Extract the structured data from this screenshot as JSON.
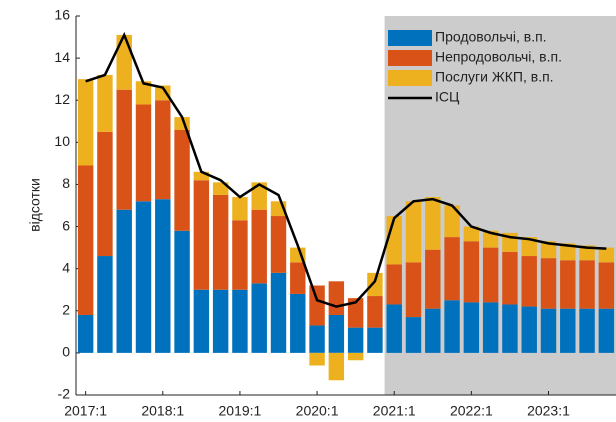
{
  "chart_data": {
    "type": "bar",
    "stacked": true,
    "y_label": "відсотки",
    "categories": [
      "2017:1",
      null,
      null,
      null,
      "2018:1",
      null,
      null,
      null,
      "2019:1",
      null,
      null,
      null,
      "2020:1",
      null,
      null,
      null,
      "2021:1",
      null,
      null,
      null,
      "2022:1",
      null,
      null,
      null,
      "2023:1",
      null,
      null,
      null
    ],
    "series": [
      {
        "name": "Продовольчі, в.п.",
        "color": "#0072bd",
        "values": [
          1.8,
          4.6,
          6.8,
          7.2,
          7.3,
          5.8,
          3.0,
          3.0,
          3.0,
          3.3,
          3.8,
          2.8,
          1.3,
          1.8,
          1.2,
          1.2,
          2.3,
          1.7,
          2.1,
          2.5,
          2.4,
          2.4,
          2.3,
          2.2,
          2.1,
          2.1,
          2.1,
          2.1
        ]
      },
      {
        "name": "Непродовольчі, в.п.",
        "color": "#d95319",
        "values": [
          7.1,
          5.9,
          5.7,
          4.6,
          4.7,
          4.8,
          5.2,
          4.5,
          3.3,
          3.5,
          2.7,
          1.5,
          1.9,
          1.6,
          1.4,
          1.5,
          1.9,
          2.6,
          2.8,
          3.0,
          2.9,
          2.6,
          2.5,
          2.4,
          2.4,
          2.3,
          2.3,
          2.2
        ]
      },
      {
        "name": "Послуги ЖКП, в.п.",
        "color": "#edb120",
        "values": [
          4.1,
          2.7,
          2.6,
          1.1,
          0.7,
          0.6,
          0.4,
          0.6,
          1.1,
          1.3,
          0.7,
          0.7,
          -0.6,
          -1.3,
          -0.35,
          1.1,
          2.3,
          2.9,
          2.5,
          1.5,
          0.7,
          0.8,
          0.9,
          0.9,
          0.8,
          0.8,
          0.7,
          0.7
        ]
      },
      {
        "name": "ІСЦ",
        "type": "line",
        "color": "#000000",
        "values": [
          12.9,
          13.2,
          15.1,
          12.8,
          12.6,
          11.2,
          8.6,
          8.2,
          7.4,
          8.0,
          7.5,
          5.1,
          2.5,
          2.2,
          2.4,
          3.4,
          6.4,
          7.2,
          7.3,
          7.0,
          6.0,
          5.7,
          5.5,
          5.4,
          5.2,
          5.1,
          5.0,
          4.95
        ]
      }
    ],
    "ylim": [
      -2,
      16
    ],
    "yticks": [
      -2,
      0,
      2,
      4,
      6,
      8,
      10,
      12,
      14,
      16
    ],
    "shaded_from": "2021:1",
    "shade_color": "#cccccc",
    "legend": "upper right"
  }
}
